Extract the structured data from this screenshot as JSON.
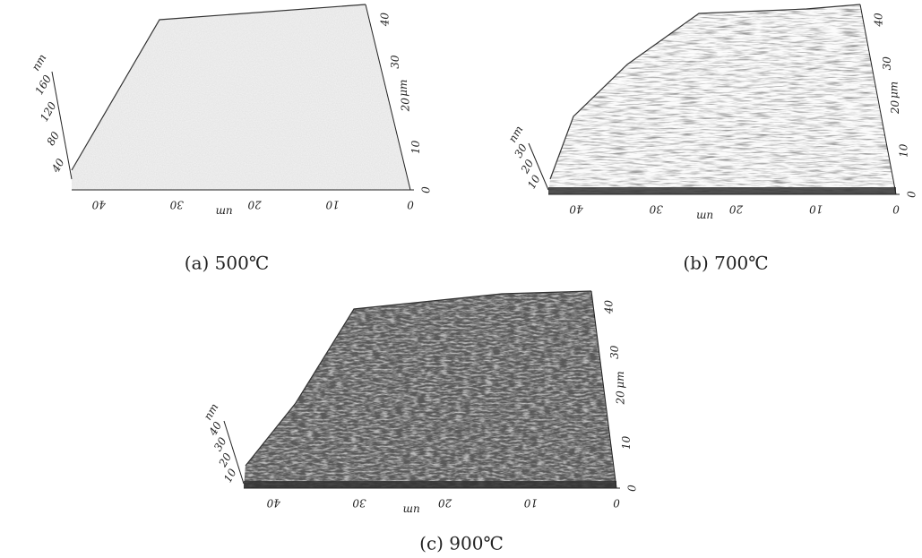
{
  "panels": [
    {
      "caption": "(a) 500℃",
      "z_label": "nm",
      "z_ticks": [
        "160",
        "120",
        "80",
        "40"
      ],
      "x_ticks": [
        "40",
        "30",
        "20",
        "10",
        "0"
      ],
      "x_label": "um",
      "y_ticks": [
        "0",
        "10",
        "20",
        "30",
        "40"
      ],
      "y_label": "μm"
    },
    {
      "caption": "(b) 700℃",
      "z_label": "nm",
      "z_ticks": [
        "30",
        "20",
        "10"
      ],
      "x_ticks": [
        "40",
        "30",
        "20",
        "10",
        "0"
      ],
      "x_label": "um",
      "y_ticks": [
        "0",
        "10",
        "20",
        "30",
        "40"
      ],
      "y_label": "μm"
    },
    {
      "caption": "(c) 900℃",
      "z_label": "nm",
      "z_ticks": [
        "40",
        "30",
        "20",
        "10"
      ],
      "x_ticks": [
        "40",
        "30",
        "20",
        "10",
        "0"
      ],
      "x_label": "um",
      "y_ticks": [
        "0",
        "10",
        "20",
        "30",
        "40"
      ],
      "y_label": "μm"
    }
  ]
}
